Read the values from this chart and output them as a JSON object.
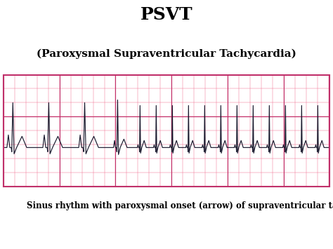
{
  "title": "PSVT",
  "subtitle": "(Paroxysmal Supraventricular Tachycardia)",
  "caption": "Sinus rhythm with paroxysmal onset (arrow) of supraventricular tachycardia (PSVT)",
  "bg_color": "#ffffff",
  "ecg_bg": "#f9a8bc",
  "grid_minor_color": "#f07090",
  "grid_major_color": "#c0306a",
  "ecg_line_color": "#1a1a2e",
  "title_fontsize": 18,
  "subtitle_fontsize": 11,
  "caption_fontsize": 8.5
}
